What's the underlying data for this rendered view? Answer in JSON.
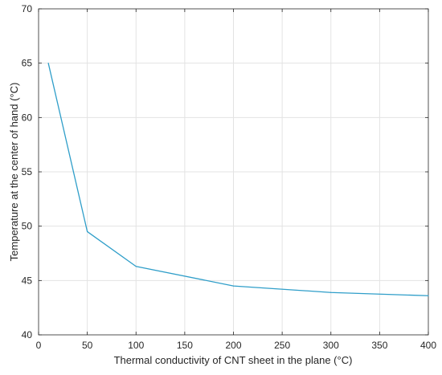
{
  "chart_data": {
    "type": "line",
    "xlabel": "Thermal conductivity of CNT sheet in the plane (°C)",
    "ylabel": "Temperature at the center of hand (°C)",
    "xlim": [
      0,
      400
    ],
    "ylim": [
      40,
      70
    ],
    "xticks": [
      0,
      50,
      100,
      150,
      200,
      250,
      300,
      350,
      400
    ],
    "yticks": [
      40,
      45,
      50,
      55,
      60,
      65,
      70
    ],
    "grid": true,
    "series": [
      {
        "color": "#2f9ec9",
        "x": [
          10,
          50,
          100,
          200,
          300,
          400
        ],
        "y": [
          65,
          49.5,
          46.3,
          44.5,
          43.9,
          43.6
        ]
      }
    ]
  },
  "colors": {
    "line": "#2f9ec9",
    "grid": "#e3e3e3",
    "axis": "#262626"
  }
}
